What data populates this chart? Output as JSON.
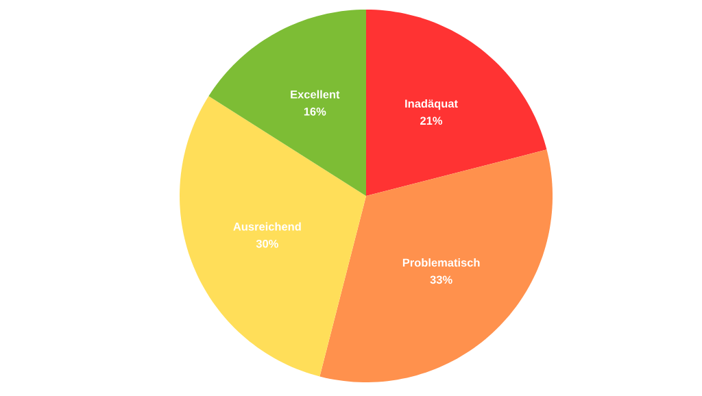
{
  "chart_data": {
    "type": "pie",
    "categories": [
      "Inadäquat",
      "Problematisch",
      "Ausreichend",
      "Excellent"
    ],
    "values": [
      21,
      33,
      30,
      16
    ],
    "colors": [
      "#ff3333",
      "#ff914d",
      "#ffde59",
      "#7dbd35"
    ],
    "value_labels": [
      "21%",
      "33%",
      "30%",
      "16%"
    ]
  }
}
